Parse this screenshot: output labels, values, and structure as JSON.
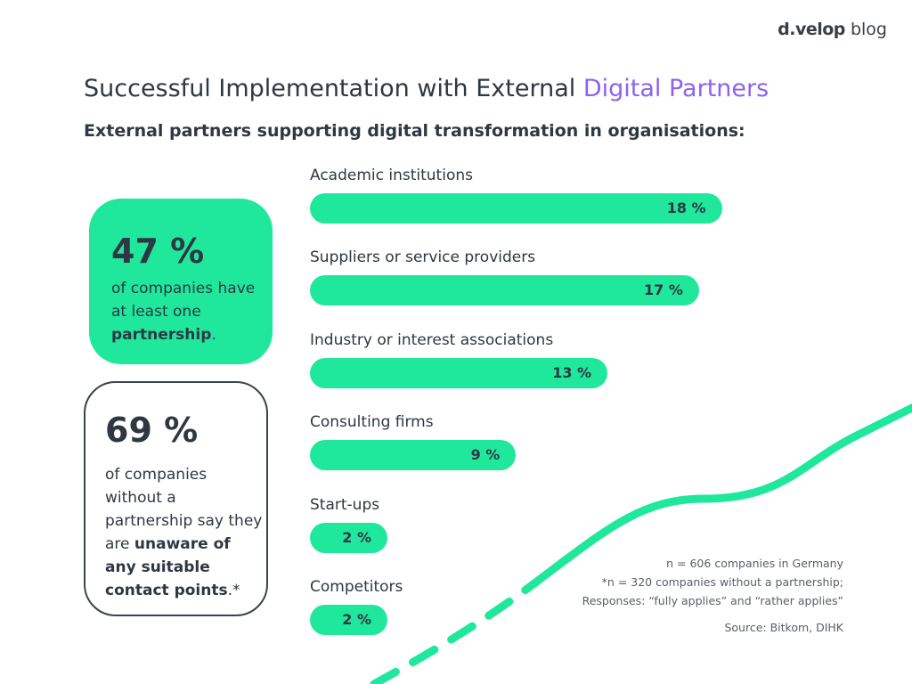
{
  "logo": {
    "brand": "d.velop",
    "suffix": "blog"
  },
  "title": {
    "prefix": "Successful Implementation with External ",
    "highlight": "Digital Partners"
  },
  "colors": {
    "accent_green": "#1fe89d",
    "accent_purple": "#8d62f0",
    "text": "#2f3742"
  },
  "stat1": {
    "value": "47 %",
    "text_before": "of companies have at least one ",
    "text_bold": "partnership",
    "text_after": "."
  },
  "stat2": {
    "value": "69 %",
    "text_before": "of companies without a partnership say they are ",
    "text_bold": "unaware of any suitable contact points",
    "text_after": ".*"
  },
  "chart_data": {
    "type": "bar",
    "orientation": "horizontal",
    "title": "External partners supporting digital transformation in organisations:",
    "categories": [
      "Academic institutions",
      "Suppliers or service providers",
      "Industry or interest associations",
      "Consulting firms",
      "Start-ups",
      "Competitors"
    ],
    "values": [
      18,
      17,
      13,
      9,
      2,
      2
    ],
    "data_labels": [
      "18 %",
      "17 %",
      "13 %",
      "9 %",
      "2 %",
      "2 %"
    ],
    "unit": "%"
  },
  "notes": {
    "n": "n = 606 companies in Germany",
    "n2": "*n = 320 companies without a partnership;",
    "responses": "Responses: “fully applies” and “rather applies”",
    "source": "Source: Bitkom, DIHK"
  }
}
